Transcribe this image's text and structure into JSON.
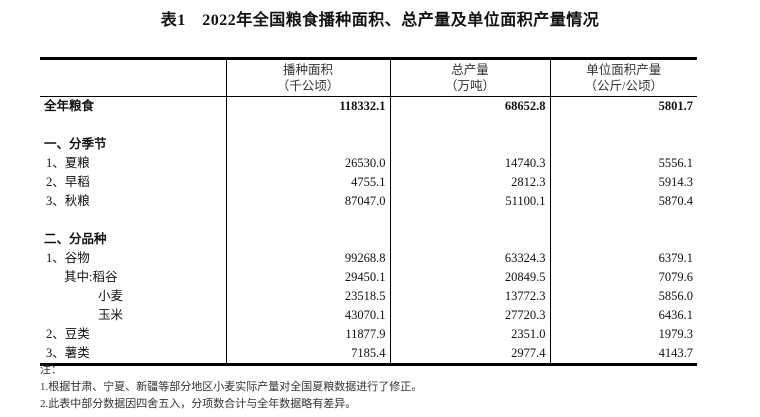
{
  "title": "表1　2022年全国粮食播种面积、总产量及单位面积产量情况",
  "headers": [
    {
      "name": "播种面积",
      "unit": "（千公顷）"
    },
    {
      "name": "总产量",
      "unit": "（万吨）"
    },
    {
      "name": "单位面积产量",
      "unit": "（公斤/公顷）"
    }
  ],
  "rows": [
    {
      "label": "全年粮食",
      "values": [
        "118332.1",
        "68652.8",
        "5801.7"
      ],
      "bold": true,
      "indent": 0
    },
    {
      "label": "",
      "values": [
        "",
        "",
        ""
      ],
      "indent": 0
    },
    {
      "label": "一、分季节",
      "values": [
        "",
        "",
        ""
      ],
      "bold": true,
      "indent": 0
    },
    {
      "label": "1、夏粮",
      "values": [
        "26530.0",
        "14740.3",
        "5556.1"
      ],
      "indent": 1
    },
    {
      "label": "2、早稻",
      "values": [
        "4755.1",
        "2812.3",
        "5914.3"
      ],
      "indent": 1
    },
    {
      "label": "3、秋粮",
      "values": [
        "87047.0",
        "51100.1",
        "5870.4"
      ],
      "indent": 1
    },
    {
      "label": "",
      "values": [
        "",
        "",
        ""
      ],
      "indent": 0
    },
    {
      "label": "二、分品种",
      "values": [
        "",
        "",
        ""
      ],
      "bold": true,
      "indent": 0
    },
    {
      "label": "1、谷物",
      "values": [
        "99268.8",
        "63324.3",
        "6379.1"
      ],
      "indent": 1
    },
    {
      "label": "其中:稻谷",
      "values": [
        "29450.1",
        "20849.5",
        "7079.6"
      ],
      "indent": 2
    },
    {
      "label": "小麦",
      "values": [
        "23518.5",
        "13772.3",
        "5856.0"
      ],
      "indent": 3
    },
    {
      "label": "玉米",
      "values": [
        "43070.1",
        "27720.3",
        "6436.1"
      ],
      "indent": 3
    },
    {
      "label": "2、豆类",
      "values": [
        "11877.9",
        "2351.0",
        "1979.3"
      ],
      "indent": 1
    },
    {
      "label": "3、薯类",
      "values": [
        "7185.4",
        "2977.4",
        "4143.7"
      ],
      "indent": 1
    }
  ],
  "notes": [
    "注：",
    "1.根据甘肃、宁夏、新疆等部分地区小麦实际产量对全国夏粮数据进行了修正。",
    "2.此表中部分数据因四舍五入，分项数合计与全年数据略有差异。"
  ]
}
